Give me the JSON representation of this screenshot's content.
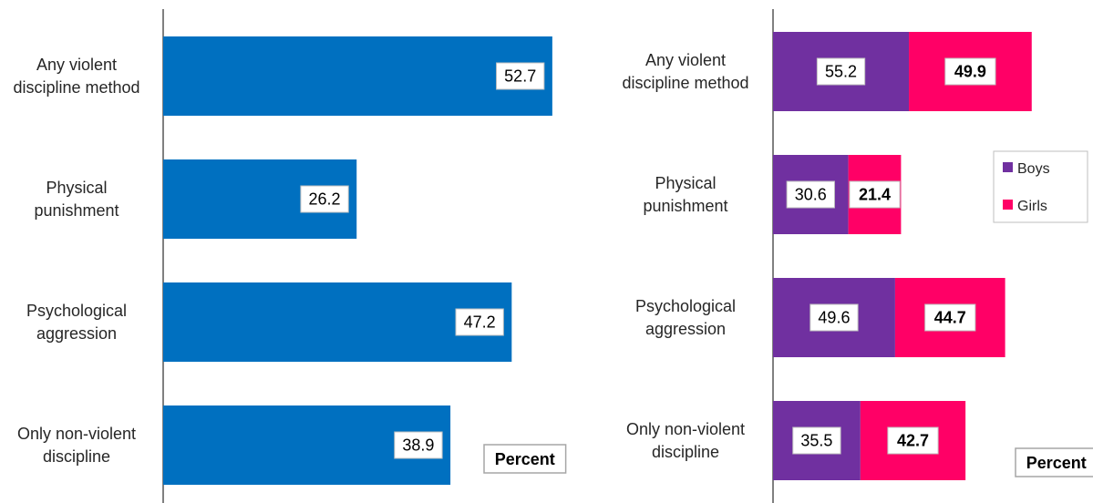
{
  "colors": {
    "total": "#0070C0",
    "boys": "#7030A0",
    "girls": "#FF0066"
  },
  "chart_data": [
    {
      "type": "bar",
      "orientation": "horizontal",
      "categories": [
        "Any violent discipline method",
        "Physical punishment",
        "Psychological aggression",
        "Only non-violent discipline"
      ],
      "category_lines": [
        [
          "Any violent",
          "discipline method"
        ],
        [
          "Physical",
          "punishment"
        ],
        [
          "Psychological",
          "aggression"
        ],
        [
          "Only non-violent",
          "discipline"
        ]
      ],
      "values": [
        52.7,
        26.2,
        47.2,
        38.9
      ],
      "unit_label": "Percent",
      "title": "",
      "xlabel": "",
      "ylabel": "",
      "xlim": [
        0,
        70
      ],
      "grid": false,
      "legend": null
    },
    {
      "type": "bar",
      "orientation": "horizontal",
      "stacked": true,
      "categories": [
        "Any violent discipline method",
        "Physical punishment",
        "Psychological aggression",
        "Only non-violent discipline"
      ],
      "category_lines": [
        [
          "Any violent",
          "discipline method"
        ],
        [
          "Physical",
          "punishment"
        ],
        [
          "Psychological",
          "aggression"
        ],
        [
          "Only non-violent",
          "discipline"
        ]
      ],
      "series": [
        {
          "name": "Boys",
          "values": [
            55.2,
            30.6,
            49.6,
            35.5
          ]
        },
        {
          "name": "Girls",
          "values": [
            49.9,
            21.4,
            44.7,
            42.7
          ]
        }
      ],
      "unit_label": "Percent",
      "title": "",
      "xlabel": "",
      "ylabel": "",
      "xlim": [
        0,
        130
      ],
      "grid": false,
      "legend": "right"
    }
  ]
}
